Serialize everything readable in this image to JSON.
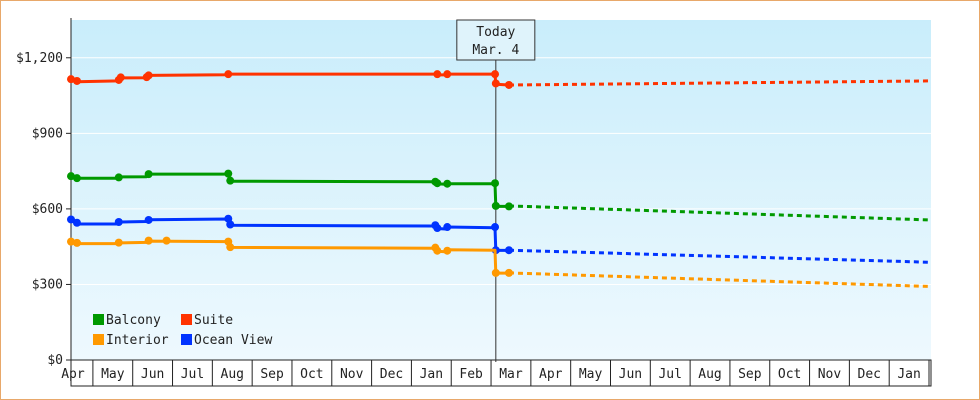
{
  "chart_data": {
    "type": "line",
    "y_ticks": [
      "$0",
      "$300",
      "$900",
      "$1,200"
    ],
    "y_tick_values": [
      0,
      300,
      900,
      1200
    ],
    "y_range": [
      0,
      1350
    ],
    "grid_y": [
      300,
      600,
      900,
      1200
    ],
    "y_extra_label": "$600",
    "x_ticks": [
      "Apr",
      "May",
      "Jun",
      "Jul",
      "Aug",
      "Sep",
      "Oct",
      "Nov",
      "Dec",
      "Jan",
      "Feb",
      "Mar",
      "Apr",
      "May",
      "Jun",
      "Jul",
      "Aug",
      "Sep",
      "Oct",
      "Nov",
      "Dec",
      "Jan"
    ],
    "x_range": [
      -0.05,
      21.55
    ],
    "today": {
      "title": "Today",
      "date": "Mar. 4",
      "x": 10.62
    },
    "legend_position": "bottom-left",
    "series": [
      {
        "name": "Suite",
        "color": "#ff3300",
        "actual": [
          [
            -0.05,
            1110
          ],
          [
            0.1,
            1105
          ],
          [
            1.15,
            1108
          ],
          [
            1.2,
            1120
          ],
          [
            1.85,
            1121
          ],
          [
            1.9,
            1130
          ],
          [
            3.85,
            1133
          ],
          [
            3.9,
            1135
          ],
          [
            9.15,
            1135
          ],
          [
            9.2,
            1132
          ],
          [
            9.35,
            1132
          ],
          [
            9.4,
            1135
          ],
          [
            10.6,
            1135
          ],
          [
            10.62,
            1095
          ],
          [
            10.95,
            1092
          ]
        ],
        "markers": [
          [
            -0.05,
            1115
          ],
          [
            0.1,
            1108
          ],
          [
            1.15,
            1112
          ],
          [
            1.2,
            1122
          ],
          [
            1.85,
            1123
          ],
          [
            1.9,
            1130
          ],
          [
            3.9,
            1135
          ],
          [
            9.15,
            1135
          ],
          [
            9.4,
            1135
          ],
          [
            10.6,
            1135
          ],
          [
            10.62,
            1098
          ],
          [
            10.95,
            1092
          ]
        ],
        "forecast": [
          [
            10.95,
            1092
          ],
          [
            21.55,
            1108
          ]
        ]
      },
      {
        "name": "Balcony",
        "color": "#009900",
        "actual": [
          [
            -0.05,
            730
          ],
          [
            0.1,
            722
          ],
          [
            1.15,
            722
          ],
          [
            1.2,
            727
          ],
          [
            1.85,
            728
          ],
          [
            1.9,
            738
          ],
          [
            3.9,
            738
          ],
          [
            3.95,
            710
          ],
          [
            9.1,
            708
          ],
          [
            9.15,
            700
          ],
          [
            9.35,
            698
          ],
          [
            9.4,
            700
          ],
          [
            10.6,
            700
          ],
          [
            10.62,
            610
          ],
          [
            10.95,
            610
          ]
        ],
        "markers": [
          [
            -0.05,
            730
          ],
          [
            0.1,
            722
          ],
          [
            1.15,
            725
          ],
          [
            1.9,
            738
          ],
          [
            3.9,
            740
          ],
          [
            3.95,
            712
          ],
          [
            9.1,
            708
          ],
          [
            9.15,
            702
          ],
          [
            9.4,
            700
          ],
          [
            10.6,
            702
          ],
          [
            10.62,
            612
          ],
          [
            10.95,
            610
          ]
        ],
        "forecast": [
          [
            10.95,
            612
          ],
          [
            21.55,
            556
          ]
        ]
      },
      {
        "name": "Ocean View",
        "color": "#0033ff",
        "actual": [
          [
            -0.05,
            555
          ],
          [
            0.1,
            540
          ],
          [
            1.15,
            540
          ],
          [
            1.2,
            548
          ],
          [
            1.85,
            550
          ],
          [
            1.9,
            557
          ],
          [
            3.9,
            560
          ],
          [
            3.95,
            535
          ],
          [
            9.1,
            532
          ],
          [
            9.15,
            522
          ],
          [
            9.35,
            520
          ],
          [
            9.4,
            528
          ],
          [
            10.6,
            525
          ],
          [
            10.62,
            435
          ],
          [
            10.95,
            435
          ]
        ],
        "markers": [
          [
            -0.05,
            558
          ],
          [
            0.1,
            545
          ],
          [
            1.15,
            548
          ],
          [
            1.9,
            556
          ],
          [
            3.9,
            561
          ],
          [
            3.95,
            538
          ],
          [
            9.1,
            535
          ],
          [
            9.15,
            524
          ],
          [
            9.4,
            528
          ],
          [
            10.6,
            528
          ],
          [
            10.62,
            436
          ],
          [
            10.95,
            436
          ]
        ],
        "forecast": [
          [
            10.95,
            436
          ],
          [
            21.55,
            388
          ]
        ]
      },
      {
        "name": "Interior",
        "color": "#ff9900",
        "actual": [
          [
            -0.05,
            470
          ],
          [
            0.1,
            462
          ],
          [
            1.15,
            462
          ],
          [
            1.2,
            465
          ],
          [
            1.85,
            467
          ],
          [
            1.9,
            472
          ],
          [
            3.9,
            470
          ],
          [
            3.95,
            447
          ],
          [
            9.1,
            444
          ],
          [
            9.15,
            432
          ],
          [
            9.35,
            430
          ],
          [
            9.4,
            438
          ],
          [
            10.6,
            436
          ],
          [
            10.62,
            345
          ],
          [
            10.95,
            345
          ]
        ],
        "markers": [
          [
            -0.05,
            470
          ],
          [
            0.1,
            465
          ],
          [
            1.15,
            466
          ],
          [
            1.9,
            474
          ],
          [
            2.35,
            474
          ],
          [
            3.9,
            470
          ],
          [
            3.95,
            448
          ],
          [
            9.1,
            446
          ],
          [
            9.15,
            434
          ],
          [
            9.4,
            434
          ],
          [
            10.62,
            346
          ],
          [
            10.95,
            346
          ]
        ],
        "forecast": [
          [
            10.95,
            346
          ],
          [
            21.55,
            292
          ]
        ]
      }
    ],
    "legend": [
      {
        "name": "Balcony",
        "color": "#009900"
      },
      {
        "name": "Suite",
        "color": "#ff3300"
      },
      {
        "name": "Interior",
        "color": "#ff9900"
      },
      {
        "name": "Ocean View",
        "color": "#0033ff"
      }
    ]
  }
}
